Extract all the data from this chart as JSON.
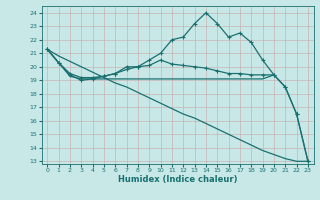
{
  "xlabel": "Humidex (Indice chaleur)",
  "bg_color": "#c8e8e8",
  "grid_color": "#b0d4d4",
  "line_color": "#1a7070",
  "xlim": [
    -0.5,
    23.5
  ],
  "ylim": [
    12.8,
    24.5
  ],
  "yticks": [
    13,
    14,
    15,
    16,
    17,
    18,
    19,
    20,
    21,
    22,
    23,
    24
  ],
  "xticks": [
    0,
    1,
    2,
    3,
    4,
    5,
    6,
    7,
    8,
    9,
    10,
    11,
    12,
    13,
    14,
    15,
    16,
    17,
    18,
    19,
    20,
    21,
    22,
    23
  ],
  "line1_x": [
    0,
    1,
    2,
    3,
    4,
    5,
    6,
    7,
    8,
    9,
    10,
    11,
    12,
    13,
    14,
    15,
    16,
    17,
    18,
    19,
    20,
    21,
    22,
    23
  ],
  "line1_y": [
    21.3,
    20.3,
    19.4,
    19.0,
    19.1,
    19.3,
    19.5,
    19.8,
    20.0,
    20.5,
    21.0,
    22.0,
    22.2,
    23.2,
    24.0,
    23.2,
    22.2,
    22.5,
    21.8,
    20.5,
    19.4,
    18.5,
    16.5,
    13.0
  ],
  "line2_x": [
    0,
    1,
    2,
    3,
    4,
    5,
    6,
    7,
    8,
    9,
    10,
    11,
    12,
    13,
    14,
    15,
    16,
    17,
    18,
    19,
    20,
    21,
    22,
    23
  ],
  "line2_y": [
    21.3,
    20.3,
    19.5,
    19.2,
    19.2,
    19.3,
    19.5,
    20.0,
    20.0,
    20.1,
    20.5,
    20.2,
    20.1,
    20.0,
    19.9,
    19.7,
    19.5,
    19.5,
    19.4,
    19.4,
    19.4,
    18.5,
    16.5,
    13.0
  ],
  "line3_x": [
    0,
    1,
    2,
    3,
    4,
    5,
    6,
    7,
    8,
    9,
    10,
    11,
    12,
    13,
    14,
    15,
    16,
    17,
    18,
    19,
    20
  ],
  "line3_y": [
    21.3,
    20.3,
    19.3,
    19.1,
    19.1,
    19.1,
    19.1,
    19.1,
    19.1,
    19.1,
    19.1,
    19.1,
    19.1,
    19.1,
    19.1,
    19.1,
    19.1,
    19.1,
    19.1,
    19.1,
    19.4
  ],
  "line4_x": [
    0,
    1,
    2,
    3,
    4,
    5,
    6,
    7,
    8,
    9,
    10,
    11,
    12,
    13,
    14,
    15,
    16,
    17,
    18,
    19,
    20,
    21,
    22,
    23
  ],
  "line4_y": [
    21.3,
    20.8,
    20.4,
    20.0,
    19.6,
    19.2,
    18.8,
    18.5,
    18.1,
    17.7,
    17.3,
    16.9,
    16.5,
    16.2,
    15.8,
    15.4,
    15.0,
    14.6,
    14.2,
    13.8,
    13.5,
    13.2,
    13.0,
    13.0
  ]
}
